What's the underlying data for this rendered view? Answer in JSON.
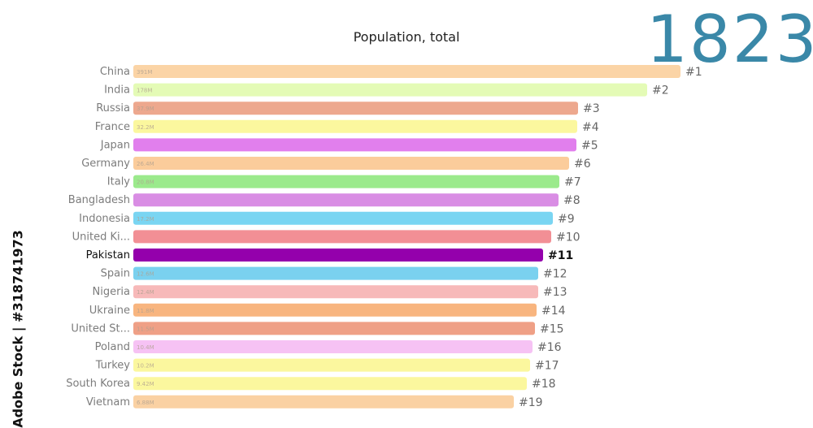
{
  "watermark": "Adobe Stock | #318741973",
  "chart_data": {
    "type": "bar",
    "orientation": "horizontal",
    "title": "Population, total",
    "year": "1823",
    "highlight": "Pakistan",
    "categories": [
      "China",
      "India",
      "Russia",
      "France",
      "Japan",
      "Germany",
      "Italy",
      "Bangladesh",
      "Indonesia",
      "United Ki...",
      "Pakistan",
      "Spain",
      "Nigeria",
      "Ukraine",
      "United St...",
      "Poland",
      "Turkey",
      "South Korea",
      "Vietnam"
    ],
    "value_labels": [
      "391M",
      "178M",
      "37.9M",
      "32.2M",
      "",
      "26.4M",
      "20.8M",
      "",
      "17.2M",
      "",
      "",
      "12.6M",
      "12.4M",
      "11.8M",
      "11.5M",
      "10.4M",
      "10.2M",
      "9.42M",
      "6.88M"
    ],
    "values": [
      391,
      178,
      37.9,
      32.2,
      31.5,
      26.4,
      20.8,
      20.5,
      17.2,
      16.9,
      13.0,
      12.6,
      12.4,
      11.8,
      11.5,
      10.4,
      10.2,
      9.42,
      6.88
    ],
    "ranks": [
      "#1",
      "#2",
      "#3",
      "#4",
      "#5",
      "#6",
      "#7",
      "#8",
      "#9",
      "#10",
      "#11",
      "#12",
      "#13",
      "#14",
      "#15",
      "#16",
      "#17",
      "#18",
      "#19"
    ],
    "colors": [
      "#fbd4a6",
      "#e4fbb6",
      "#eda88e",
      "#fbf79e",
      "#e17fed",
      "#fbcc9b",
      "#9bea8c",
      "#d98de4",
      "#7ad5f2",
      "#f28f95",
      "#9400ac",
      "#7ad1ef",
      "#f7b9b9",
      "#f8b57f",
      "#efa086",
      "#f6c2f4",
      "#fbf79e",
      "#fbf79e",
      "#fad1a3"
    ],
    "label_colors": {
      "normal": "#7c7c7c",
      "highlight": "#111111"
    },
    "rank_colors": {
      "normal": "#666666",
      "highlight": "#111111"
    }
  }
}
